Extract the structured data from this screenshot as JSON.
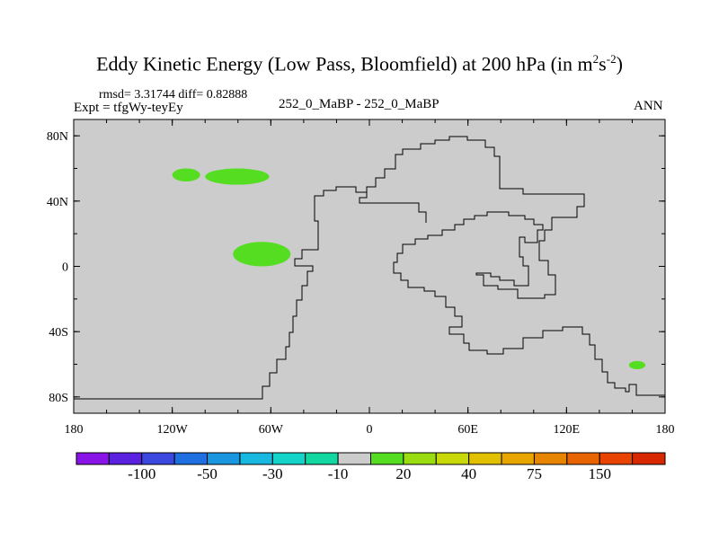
{
  "title": {
    "main": "Eddy Kinetic Energy (Low Pass, Bloomfield) at 200 hPa (in m",
    "sup1": "2",
    "mid": "s",
    "sup2": "-2",
    "end": ")"
  },
  "stats": "rmsd= 3.31744 diff= 0.82888",
  "expt": "Expt = tfgWy-teyEy",
  "center_label": "252_0_MaBP - 252_0_MaBP",
  "season": "ANN",
  "chart_data": {
    "type": "contour-map",
    "projection": "cylindrical-equidistant",
    "xlim": [
      -180,
      180
    ],
    "ylim": [
      -90,
      90
    ],
    "x_ticks": [
      {
        "value": -180,
        "label": "180"
      },
      {
        "value": -120,
        "label": "120W"
      },
      {
        "value": -60,
        "label": "60W"
      },
      {
        "value": 0,
        "label": "0"
      },
      {
        "value": 60,
        "label": "60E"
      },
      {
        "value": 120,
        "label": "120E"
      },
      {
        "value": 180,
        "label": "180"
      }
    ],
    "y_ticks": [
      {
        "value": 80,
        "label": "80N"
      },
      {
        "value": 40,
        "label": "40N"
      },
      {
        "value": 0,
        "label": "0"
      },
      {
        "value": -40,
        "label": "40S"
      },
      {
        "value": -80,
        "label": "80S"
      }
    ],
    "background_value_color": "#cccccc",
    "anomaly_regions": [
      {
        "name": "north-pacific-west",
        "color": "#55dd22",
        "lon": [
          -120,
          -103
        ],
        "lat": [
          52,
          60
        ]
      },
      {
        "name": "north-pacific-east",
        "color": "#55dd22",
        "lon": [
          -100,
          -61
        ],
        "lat": [
          50,
          60
        ]
      },
      {
        "name": "equatorial-pacific",
        "color": "#55dd22",
        "lon": [
          -83,
          -48
        ],
        "lat": [
          0,
          15
        ]
      },
      {
        "name": "south-pacific",
        "color": "#55dd22",
        "lon": [
          158,
          168
        ],
        "lat": [
          -63,
          -58
        ]
      }
    ],
    "colorbar": {
      "colors": [
        "#8a13e8",
        "#5a22e0",
        "#3a48e0",
        "#1f6fe0",
        "#1a95e0",
        "#18b8e0",
        "#14d3c8",
        "#12d7a0",
        "#cccccc",
        "#55dd22",
        "#99dd10",
        "#c8d808",
        "#e0c000",
        "#e8a500",
        "#e88500",
        "#e86400",
        "#e84400",
        "#d82800"
      ],
      "labels": [
        {
          "text": "-100",
          "boundary": 2
        },
        {
          "text": "-50",
          "boundary": 4
        },
        {
          "text": "-30",
          "boundary": 6
        },
        {
          "text": "-10",
          "boundary": 8
        },
        {
          "text": "20",
          "boundary": 10
        },
        {
          "text": "40",
          "boundary": 12
        },
        {
          "text": "75",
          "boundary": 14
        },
        {
          "text": "150",
          "boundary": 16
        }
      ]
    }
  }
}
